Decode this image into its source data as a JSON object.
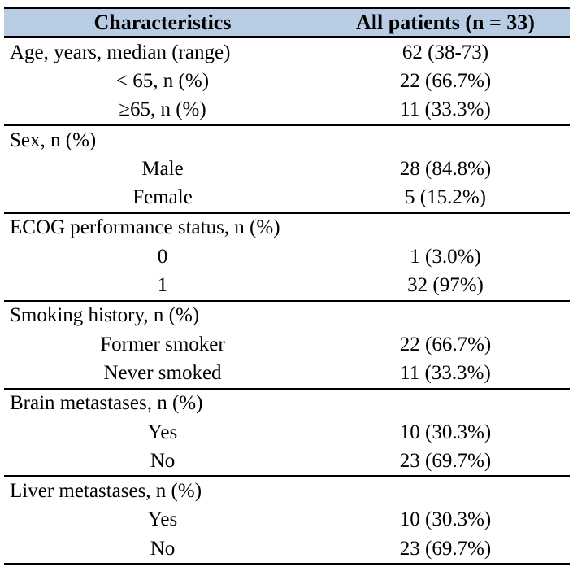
{
  "colors": {
    "header_bg": "#b8cce4",
    "border": "#000000",
    "text": "#000000"
  },
  "table": {
    "header": {
      "characteristics_label": "Characteristics",
      "all_patients_label": "All patients (n = 33)"
    },
    "sections": [
      {
        "rows": [
          {
            "label": "Age, years, median (range)",
            "indent": false,
            "value": "62 (38-73)"
          },
          {
            "label": "< 65, n (%)",
            "indent": true,
            "value": "22 (66.7%)"
          },
          {
            "label": "≥65, n (%)",
            "indent": true,
            "value": "11 (33.3%)"
          }
        ]
      },
      {
        "rows": [
          {
            "label": "Sex, n (%)",
            "indent": false,
            "value": ""
          },
          {
            "label": "Male",
            "indent": true,
            "value": "28 (84.8%)"
          },
          {
            "label": "Female",
            "indent": true,
            "value": "5 (15.2%)"
          }
        ]
      },
      {
        "rows": [
          {
            "label": "ECOG performance status, n (%)",
            "indent": false,
            "value": ""
          },
          {
            "label": "0",
            "indent": true,
            "value": "1 (3.0%)"
          },
          {
            "label": "1",
            "indent": true,
            "value": "32 (97%)"
          }
        ]
      },
      {
        "rows": [
          {
            "label": "Smoking history, n (%)",
            "indent": false,
            "value": ""
          },
          {
            "label": "Former smoker",
            "indent": true,
            "value": "22 (66.7%)"
          },
          {
            "label": "Never smoked",
            "indent": true,
            "value": "11 (33.3%)"
          }
        ]
      },
      {
        "rows": [
          {
            "label": "Brain metastases, n (%)",
            "indent": false,
            "value": ""
          },
          {
            "label": "Yes",
            "indent": true,
            "value": "10 (30.3%)"
          },
          {
            "label": "No",
            "indent": true,
            "value": "23 (69.7%)"
          }
        ]
      },
      {
        "rows": [
          {
            "label": "Liver metastases, n (%)",
            "indent": false,
            "value": ""
          },
          {
            "label": "Yes",
            "indent": true,
            "value": "10 (30.3%)"
          },
          {
            "label": "No",
            "indent": true,
            "value": "23 (69.7%)"
          }
        ]
      }
    ]
  }
}
